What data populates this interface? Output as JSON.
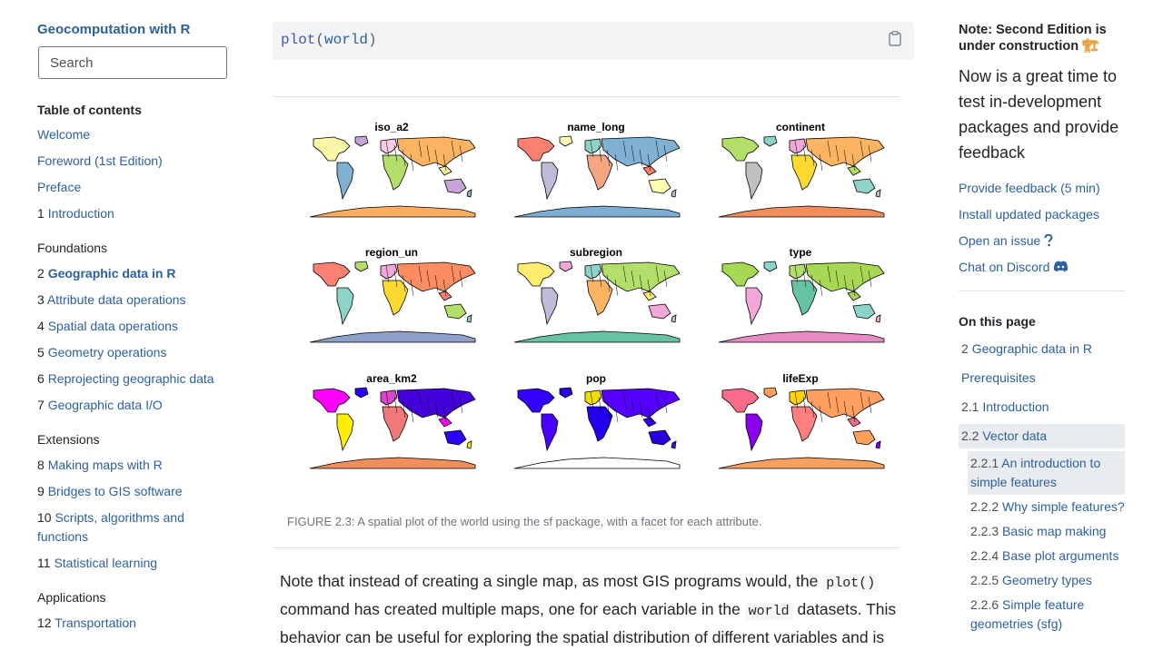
{
  "left_sidebar": {
    "site_title": "Geocomputation with R",
    "search_placeholder": "Search",
    "toc_title": "Table of contents",
    "items": [
      {
        "num": "",
        "label": "Welcome"
      },
      {
        "num": "",
        "label": "Foreword (1st Edition)"
      },
      {
        "num": "",
        "label": "Preface"
      },
      {
        "num": "1",
        "label": "Introduction"
      },
      {
        "num": "2",
        "label": "Geographic data in R"
      },
      {
        "num": "3",
        "label": "Attribute data operations"
      },
      {
        "num": "4",
        "label": "Spatial data operations"
      },
      {
        "num": "5",
        "label": "Geometry operations"
      },
      {
        "num": "6",
        "label": "Reprojecting geographic data"
      },
      {
        "num": "7",
        "label": "Geographic data I/O"
      },
      {
        "num": "8",
        "label": "Making maps with R"
      },
      {
        "num": "9",
        "label": "Bridges to GIS software"
      },
      {
        "num": "10",
        "label": "Scripts, algorithms and functions"
      },
      {
        "num": "11",
        "label": "Statistical learning"
      },
      {
        "num": "12",
        "label": "Transportation"
      }
    ],
    "parts": {
      "foundations": "Foundations",
      "extensions": "Extensions",
      "applications": "Applications"
    }
  },
  "main": {
    "code": {
      "fn": "plot",
      "open": "(",
      "arg": "world",
      "close": ")"
    },
    "figure_panels": [
      {
        "title": "iso_a2",
        "palette": [
          "#f7f7a6",
          "#c9a2d6",
          "#80b1d3",
          "#f8cbe0",
          "#b3de69",
          "#fdb462"
        ],
        "antarctica": "#fdae61"
      },
      {
        "title": "name_long",
        "palette": [
          "#fb8072",
          "#ffffb3",
          "#bebada",
          "#8dd3c7",
          "#f4a582",
          "#80b1d3"
        ],
        "antarctica": "#7fadd1"
      },
      {
        "title": "continent",
        "palette": [
          "#b3de69",
          "#8dd3c7",
          "#c1c1c1",
          "#f1a7d8",
          "#ffd92f",
          "#fdb462"
        ],
        "antarctica": "#f28e5b"
      },
      {
        "title": "region_un",
        "palette": [
          "#fb8072",
          "#b3de69",
          "#8dd3c7",
          "#f1a7d8",
          "#ffd92f",
          "#fc8d62"
        ],
        "antarctica": "#8da0cb"
      },
      {
        "title": "subregion",
        "palette": [
          "#ffed6f",
          "#f1a7d8",
          "#bebada",
          "#8dd3c7",
          "#fdb462",
          "#b3de69"
        ],
        "antarctica": "#66c2a5"
      },
      {
        "title": "type",
        "palette": [
          "#a6d854",
          "#8dd3c7",
          "#f1a7d8",
          "#b3de69",
          "#66c2a5",
          "#a6d854"
        ],
        "antarctica": "#e78ac3"
      },
      {
        "title": "area_km2",
        "palette": [
          "#ff00ff",
          "#2a00ff",
          "#ffee00",
          "#d946c6",
          "#f07a7a",
          "#4400dd"
        ],
        "antarctica": "#f28e5b"
      },
      {
        "title": "pop",
        "palette": [
          "#3300ff",
          "#2a00dd",
          "#4a00ff",
          "#f0e000",
          "#2200ee",
          "#5500ff"
        ],
        "antarctica": "#ffffff"
      },
      {
        "title": "lifeExp",
        "palette": [
          "#fa6a8a",
          "#ff9f5a",
          "#8a00ee",
          "#ffd300",
          "#ff7f7f",
          "#ffa060"
        ],
        "antarctica": "#f7a060"
      }
    ],
    "caption": "FIGURE 2.3: A spatial plot of the world using the sf package, with a facet for each attribute.",
    "body": {
      "t1": "Note that instead of creating a single map, as most GIS programs would, the ",
      "c1": "plot()",
      "t2": " command has created multiple maps, one for each variable in the ",
      "c2": "world",
      "t3": " datasets. This behavior can be useful for exploring the spatial distribution of different variables and is"
    }
  },
  "right_sidebar": {
    "note_title": "Note: Second Edition is under construction",
    "note_emoji": "🏗",
    "note_body": "Now is a great time to test in-development packages and provide feedback",
    "links": {
      "feedback": "Provide feedback (5 min)",
      "install": "Install updated packages",
      "issue": "Open an issue",
      "discord": "Chat on Discord"
    },
    "on_this_page": "On this page",
    "toc": [
      {
        "num": "2",
        "label": "Geographic data in R"
      },
      {
        "num": "",
        "label": "Prerequisites"
      },
      {
        "num": "2.1",
        "label": "Introduction"
      },
      {
        "num": "2.2",
        "label": "Vector data"
      },
      {
        "num": "2.2.1",
        "label": "An introduction to simple features"
      },
      {
        "num": "2.2.2",
        "label": "Why simple features?"
      },
      {
        "num": "2.2.3",
        "label": "Basic map making"
      },
      {
        "num": "2.2.4",
        "label": "Base plot arguments"
      },
      {
        "num": "2.2.5",
        "label": "Geometry types"
      },
      {
        "num": "2.2.6",
        "label": "Simple feature geometries (sfg)"
      }
    ]
  }
}
